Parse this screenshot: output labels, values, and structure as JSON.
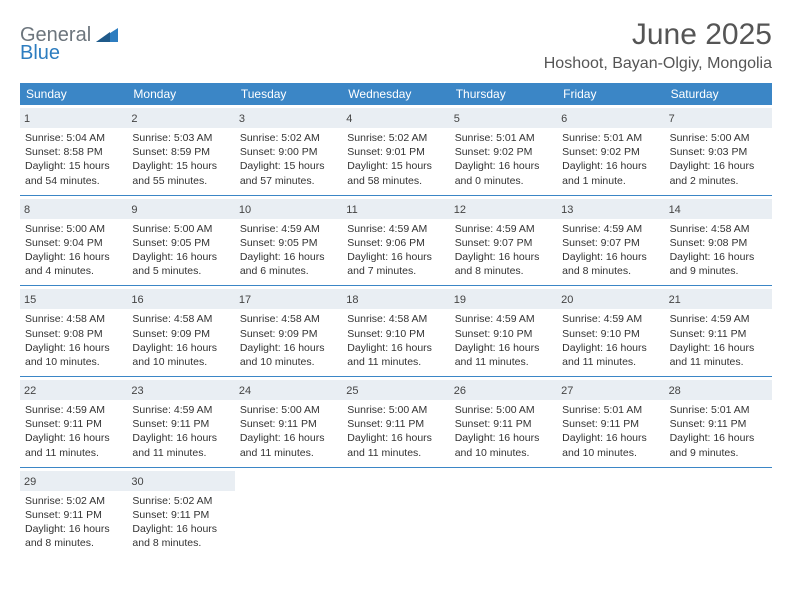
{
  "logo": {
    "general": "General",
    "blue": "Blue"
  },
  "title": "June 2025",
  "location": "Hoshoot, Bayan-Olgiy, Mongolia",
  "colors": {
    "header_bg": "#3b86c6",
    "daynum_bg": "#e9eef3",
    "logo_gray": "#6c757d",
    "logo_blue": "#2d7dc0",
    "title_color": "#555555"
  },
  "daynames": [
    "Sunday",
    "Monday",
    "Tuesday",
    "Wednesday",
    "Thursday",
    "Friday",
    "Saturday"
  ],
  "weeks": [
    [
      {
        "n": "1",
        "sr": "Sunrise: 5:04 AM",
        "ss": "Sunset: 8:58 PM",
        "d1": "Daylight: 15 hours",
        "d2": "and 54 minutes."
      },
      {
        "n": "2",
        "sr": "Sunrise: 5:03 AM",
        "ss": "Sunset: 8:59 PM",
        "d1": "Daylight: 15 hours",
        "d2": "and 55 minutes."
      },
      {
        "n": "3",
        "sr": "Sunrise: 5:02 AM",
        "ss": "Sunset: 9:00 PM",
        "d1": "Daylight: 15 hours",
        "d2": "and 57 minutes."
      },
      {
        "n": "4",
        "sr": "Sunrise: 5:02 AM",
        "ss": "Sunset: 9:01 PM",
        "d1": "Daylight: 15 hours",
        "d2": "and 58 minutes."
      },
      {
        "n": "5",
        "sr": "Sunrise: 5:01 AM",
        "ss": "Sunset: 9:02 PM",
        "d1": "Daylight: 16 hours",
        "d2": "and 0 minutes."
      },
      {
        "n": "6",
        "sr": "Sunrise: 5:01 AM",
        "ss": "Sunset: 9:02 PM",
        "d1": "Daylight: 16 hours",
        "d2": "and 1 minute."
      },
      {
        "n": "7",
        "sr": "Sunrise: 5:00 AM",
        "ss": "Sunset: 9:03 PM",
        "d1": "Daylight: 16 hours",
        "d2": "and 2 minutes."
      }
    ],
    [
      {
        "n": "8",
        "sr": "Sunrise: 5:00 AM",
        "ss": "Sunset: 9:04 PM",
        "d1": "Daylight: 16 hours",
        "d2": "and 4 minutes."
      },
      {
        "n": "9",
        "sr": "Sunrise: 5:00 AM",
        "ss": "Sunset: 9:05 PM",
        "d1": "Daylight: 16 hours",
        "d2": "and 5 minutes."
      },
      {
        "n": "10",
        "sr": "Sunrise: 4:59 AM",
        "ss": "Sunset: 9:05 PM",
        "d1": "Daylight: 16 hours",
        "d2": "and 6 minutes."
      },
      {
        "n": "11",
        "sr": "Sunrise: 4:59 AM",
        "ss": "Sunset: 9:06 PM",
        "d1": "Daylight: 16 hours",
        "d2": "and 7 minutes."
      },
      {
        "n": "12",
        "sr": "Sunrise: 4:59 AM",
        "ss": "Sunset: 9:07 PM",
        "d1": "Daylight: 16 hours",
        "d2": "and 8 minutes."
      },
      {
        "n": "13",
        "sr": "Sunrise: 4:59 AM",
        "ss": "Sunset: 9:07 PM",
        "d1": "Daylight: 16 hours",
        "d2": "and 8 minutes."
      },
      {
        "n": "14",
        "sr": "Sunrise: 4:58 AM",
        "ss": "Sunset: 9:08 PM",
        "d1": "Daylight: 16 hours",
        "d2": "and 9 minutes."
      }
    ],
    [
      {
        "n": "15",
        "sr": "Sunrise: 4:58 AM",
        "ss": "Sunset: 9:08 PM",
        "d1": "Daylight: 16 hours",
        "d2": "and 10 minutes."
      },
      {
        "n": "16",
        "sr": "Sunrise: 4:58 AM",
        "ss": "Sunset: 9:09 PM",
        "d1": "Daylight: 16 hours",
        "d2": "and 10 minutes."
      },
      {
        "n": "17",
        "sr": "Sunrise: 4:58 AM",
        "ss": "Sunset: 9:09 PM",
        "d1": "Daylight: 16 hours",
        "d2": "and 10 minutes."
      },
      {
        "n": "18",
        "sr": "Sunrise: 4:58 AM",
        "ss": "Sunset: 9:10 PM",
        "d1": "Daylight: 16 hours",
        "d2": "and 11 minutes."
      },
      {
        "n": "19",
        "sr": "Sunrise: 4:59 AM",
        "ss": "Sunset: 9:10 PM",
        "d1": "Daylight: 16 hours",
        "d2": "and 11 minutes."
      },
      {
        "n": "20",
        "sr": "Sunrise: 4:59 AM",
        "ss": "Sunset: 9:10 PM",
        "d1": "Daylight: 16 hours",
        "d2": "and 11 minutes."
      },
      {
        "n": "21",
        "sr": "Sunrise: 4:59 AM",
        "ss": "Sunset: 9:11 PM",
        "d1": "Daylight: 16 hours",
        "d2": "and 11 minutes."
      }
    ],
    [
      {
        "n": "22",
        "sr": "Sunrise: 4:59 AM",
        "ss": "Sunset: 9:11 PM",
        "d1": "Daylight: 16 hours",
        "d2": "and 11 minutes."
      },
      {
        "n": "23",
        "sr": "Sunrise: 4:59 AM",
        "ss": "Sunset: 9:11 PM",
        "d1": "Daylight: 16 hours",
        "d2": "and 11 minutes."
      },
      {
        "n": "24",
        "sr": "Sunrise: 5:00 AM",
        "ss": "Sunset: 9:11 PM",
        "d1": "Daylight: 16 hours",
        "d2": "and 11 minutes."
      },
      {
        "n": "25",
        "sr": "Sunrise: 5:00 AM",
        "ss": "Sunset: 9:11 PM",
        "d1": "Daylight: 16 hours",
        "d2": "and 11 minutes."
      },
      {
        "n": "26",
        "sr": "Sunrise: 5:00 AM",
        "ss": "Sunset: 9:11 PM",
        "d1": "Daylight: 16 hours",
        "d2": "and 10 minutes."
      },
      {
        "n": "27",
        "sr": "Sunrise: 5:01 AM",
        "ss": "Sunset: 9:11 PM",
        "d1": "Daylight: 16 hours",
        "d2": "and 10 minutes."
      },
      {
        "n": "28",
        "sr": "Sunrise: 5:01 AM",
        "ss": "Sunset: 9:11 PM",
        "d1": "Daylight: 16 hours",
        "d2": "and 9 minutes."
      }
    ],
    [
      {
        "n": "29",
        "sr": "Sunrise: 5:02 AM",
        "ss": "Sunset: 9:11 PM",
        "d1": "Daylight: 16 hours",
        "d2": "and 8 minutes."
      },
      {
        "n": "30",
        "sr": "Sunrise: 5:02 AM",
        "ss": "Sunset: 9:11 PM",
        "d1": "Daylight: 16 hours",
        "d2": "and 8 minutes."
      },
      null,
      null,
      null,
      null,
      null
    ]
  ]
}
